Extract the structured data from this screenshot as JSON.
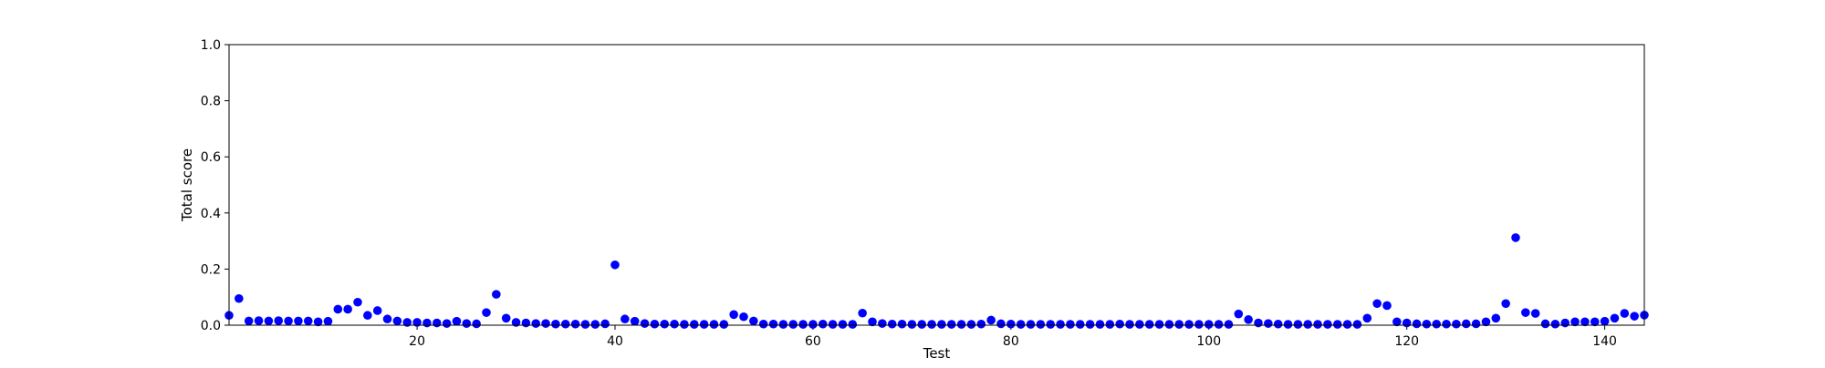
{
  "chart_data": {
    "type": "scatter",
    "title": "",
    "xlabel": "Test",
    "ylabel": "Total score",
    "xlim": [
      1,
      144
    ],
    "ylim": [
      0.0,
      1.0
    ],
    "xticks": [
      20,
      40,
      60,
      80,
      100,
      120,
      140
    ],
    "xtick_labels": [
      "20",
      "40",
      "60",
      "80",
      "100",
      "120",
      "140"
    ],
    "yticks": [
      0.0,
      0.2,
      0.4,
      0.6,
      0.8,
      1.0
    ],
    "ytick_labels": [
      "0.0",
      "0.2",
      "0.4",
      "0.6",
      "0.8",
      "1.0"
    ],
    "grid": false,
    "legend": "none",
    "marker_color": "#0000ff",
    "series": [
      {
        "x": [
          1,
          2,
          3,
          4,
          5,
          6,
          7,
          8,
          9,
          10,
          11,
          12,
          13,
          14,
          15,
          16,
          17,
          18,
          19,
          20,
          21,
          22,
          23,
          24,
          25,
          26,
          27,
          28,
          29,
          30,
          31,
          32,
          33,
          34,
          35,
          36,
          37,
          38,
          39,
          40,
          41,
          42,
          43,
          44,
          45,
          46,
          47,
          48,
          49,
          50,
          51,
          52,
          53,
          54,
          55,
          56,
          57,
          58,
          59,
          60,
          61,
          62,
          63,
          64,
          65,
          66,
          67,
          68,
          69,
          70,
          71,
          72,
          73,
          74,
          75,
          76,
          77,
          78,
          79,
          80,
          81,
          82,
          83,
          84,
          85,
          86,
          87,
          88,
          89,
          90,
          91,
          92,
          93,
          94,
          95,
          96,
          97,
          98,
          99,
          100,
          101,
          102,
          103,
          104,
          105,
          106,
          107,
          108,
          109,
          110,
          111,
          112,
          113,
          114,
          115,
          116,
          117,
          118,
          119,
          120,
          121,
          122,
          123,
          124,
          125,
          126,
          127,
          128,
          129,
          130,
          131,
          132,
          133,
          134,
          135,
          136,
          137,
          138,
          139,
          140,
          141,
          142,
          143,
          144
        ],
        "y": [
          0.035,
          0.095,
          0.015,
          0.016,
          0.015,
          0.016,
          0.015,
          0.015,
          0.015,
          0.012,
          0.014,
          0.057,
          0.057,
          0.082,
          0.035,
          0.052,
          0.022,
          0.015,
          0.01,
          0.01,
          0.008,
          0.008,
          0.006,
          0.014,
          0.006,
          0.005,
          0.045,
          0.11,
          0.025,
          0.01,
          0.008,
          0.006,
          0.006,
          0.004,
          0.004,
          0.004,
          0.003,
          0.003,
          0.005,
          0.215,
          0.022,
          0.014,
          0.006,
          0.004,
          0.004,
          0.004,
          0.003,
          0.003,
          0.003,
          0.003,
          0.003,
          0.038,
          0.03,
          0.015,
          0.004,
          0.004,
          0.003,
          0.003,
          0.003,
          0.003,
          0.004,
          0.003,
          0.003,
          0.003,
          0.043,
          0.012,
          0.006,
          0.004,
          0.004,
          0.003,
          0.003,
          0.003,
          0.003,
          0.003,
          0.003,
          0.003,
          0.004,
          0.018,
          0.005,
          0.004,
          0.003,
          0.003,
          0.003,
          0.003,
          0.003,
          0.003,
          0.003,
          0.003,
          0.003,
          0.003,
          0.004,
          0.003,
          0.003,
          0.003,
          0.003,
          0.003,
          0.003,
          0.003,
          0.003,
          0.003,
          0.003,
          0.003,
          0.04,
          0.02,
          0.008,
          0.006,
          0.004,
          0.003,
          0.003,
          0.003,
          0.003,
          0.003,
          0.003,
          0.003,
          0.003,
          0.025,
          0.077,
          0.07,
          0.012,
          0.008,
          0.005,
          0.004,
          0.004,
          0.004,
          0.004,
          0.005,
          0.005,
          0.012,
          0.025,
          0.077,
          0.312,
          0.045,
          0.042,
          0.005,
          0.004,
          0.008,
          0.012,
          0.012,
          0.012,
          0.014,
          0.025,
          0.042,
          0.032,
          0.036
        ]
      }
    ]
  }
}
